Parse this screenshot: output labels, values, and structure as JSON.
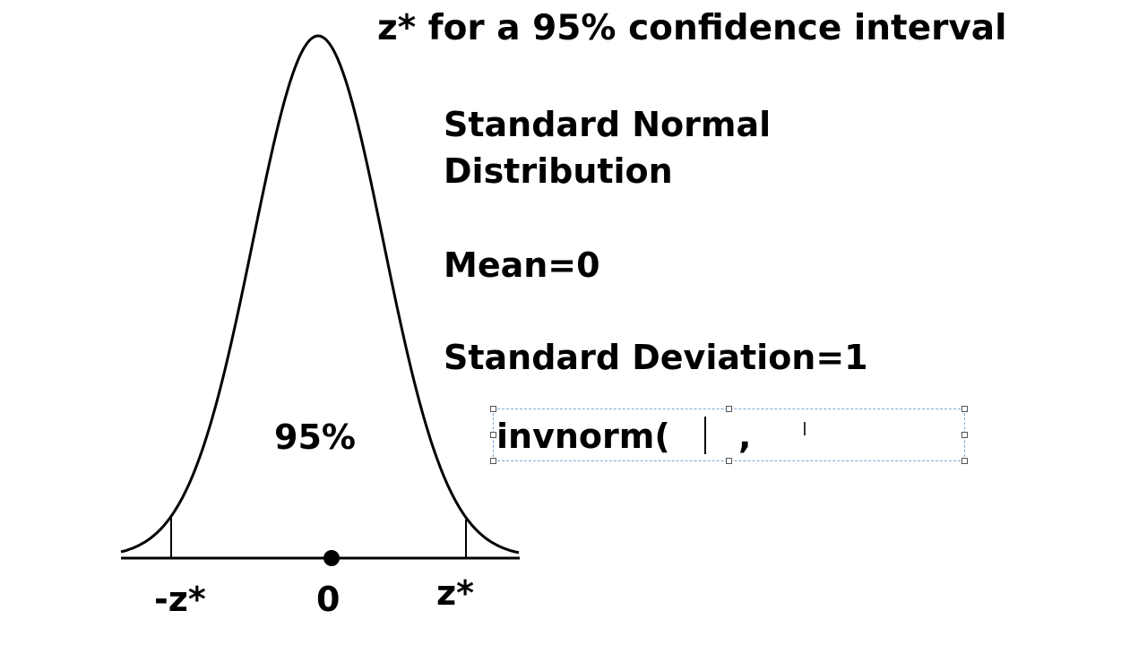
{
  "title": "z* for a 95% confidence interval",
  "curve": {
    "left_label": "-z*",
    "center_label": "0",
    "right_label": "z*",
    "area_label": "95%"
  },
  "info": {
    "line1": "Standard Normal",
    "line2": "Distribution",
    "mean": "Mean=0",
    "sd": "Standard Deviation=1"
  },
  "textbox": {
    "function": "invnorm(",
    "separator": ","
  }
}
